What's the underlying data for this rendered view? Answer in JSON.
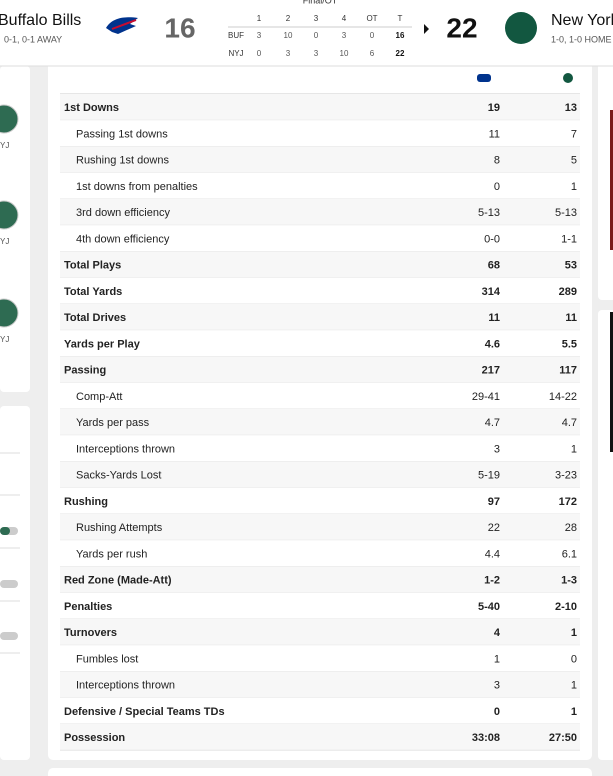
{
  "header": {
    "status": "Final/OT",
    "away": {
      "name": "Buffalo Bills",
      "record": "0-1, 0-1 AWAY",
      "score": "16"
    },
    "home": {
      "name": "New York",
      "record": "1-0, 1-0 HOME",
      "score": "22"
    },
    "linescore": {
      "columns": [
        "1",
        "2",
        "3",
        "4",
        "OT",
        "T"
      ],
      "rows": [
        {
          "team": "BUF",
          "scores": [
            "3",
            "10",
            "0",
            "3",
            "0",
            "16"
          ]
        },
        {
          "team": "NYJ",
          "scores": [
            "0",
            "3",
            "3",
            "10",
            "6",
            "22"
          ]
        }
      ]
    }
  },
  "sidebar": {
    "labels": [
      "YJ",
      "YJ",
      "YJ"
    ]
  },
  "stats": {
    "rows": [
      {
        "name": "1st Downs",
        "away": "19",
        "home": "13",
        "main": true
      },
      {
        "name": "Passing 1st downs",
        "away": "11",
        "home": "7",
        "main": false
      },
      {
        "name": "Rushing 1st downs",
        "away": "8",
        "home": "5",
        "main": false
      },
      {
        "name": "1st downs from penalties",
        "away": "0",
        "home": "1",
        "main": false
      },
      {
        "name": "3rd down efficiency",
        "away": "5-13",
        "home": "5-13",
        "main": false
      },
      {
        "name": "4th down efficiency",
        "away": "0-0",
        "home": "1-1",
        "main": false
      },
      {
        "name": "Total Plays",
        "away": "68",
        "home": "53",
        "main": true
      },
      {
        "name": "Total Yards",
        "away": "314",
        "home": "289",
        "main": true
      },
      {
        "name": "Total Drives",
        "away": "11",
        "home": "11",
        "main": true
      },
      {
        "name": "Yards per Play",
        "away": "4.6",
        "home": "5.5",
        "main": true
      },
      {
        "name": "Passing",
        "away": "217",
        "home": "117",
        "main": true
      },
      {
        "name": "Comp-Att",
        "away": "29-41",
        "home": "14-22",
        "main": false
      },
      {
        "name": "Yards per pass",
        "away": "4.7",
        "home": "4.7",
        "main": false
      },
      {
        "name": "Interceptions thrown",
        "away": "3",
        "home": "1",
        "main": false
      },
      {
        "name": "Sacks-Yards Lost",
        "away": "5-19",
        "home": "3-23",
        "main": false
      },
      {
        "name": "Rushing",
        "away": "97",
        "home": "172",
        "main": true
      },
      {
        "name": "Rushing Attempts",
        "away": "22",
        "home": "28",
        "main": false
      },
      {
        "name": "Yards per rush",
        "away": "4.4",
        "home": "6.1",
        "main": false
      },
      {
        "name": "Red Zone (Made-Att)",
        "away": "1-2",
        "home": "1-3",
        "main": true
      },
      {
        "name": "Penalties",
        "away": "5-40",
        "home": "2-10",
        "main": true
      },
      {
        "name": "Turnovers",
        "away": "4",
        "home": "1",
        "main": true
      },
      {
        "name": "Fumbles lost",
        "away": "1",
        "home": "0",
        "main": false
      },
      {
        "name": "Interceptions thrown",
        "away": "3",
        "home": "1",
        "main": false
      },
      {
        "name": "Defensive / Special Teams TDs",
        "away": "0",
        "home": "1",
        "main": true
      },
      {
        "name": "Possession",
        "away": "33:08",
        "home": "27:50",
        "main": true
      }
    ]
  }
}
